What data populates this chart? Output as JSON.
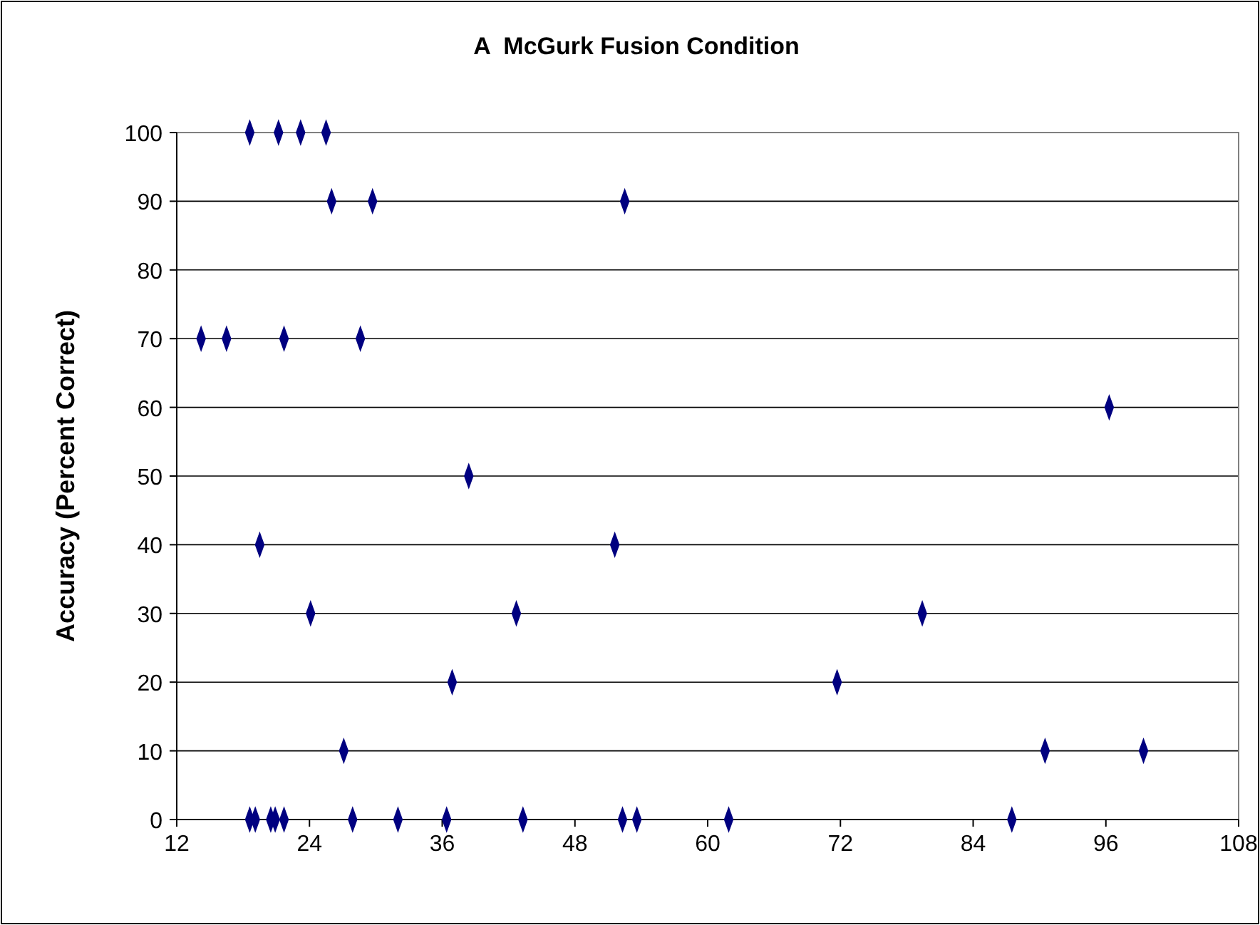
{
  "chart_data": {
    "type": "scatter",
    "title": "A  McGurk Fusion Condition",
    "ylabel": "Accuracy (Percent Correct)",
    "x": [
      18.6,
      21.2,
      23.2,
      25.5,
      26.0,
      29.7,
      52.5,
      14.2,
      16.5,
      21.7,
      28.6,
      96.3,
      38.4,
      19.5,
      51.6,
      24.1,
      42.7,
      79.4,
      36.9,
      71.7,
      27.1,
      90.5,
      99.4,
      18.6,
      19.1,
      20.5,
      20.9,
      21.7,
      27.9,
      32.0,
      36.4,
      43.3,
      52.3,
      53.6,
      61.9,
      87.5
    ],
    "values": [
      100,
      100,
      100,
      100,
      90,
      90,
      90,
      70,
      70,
      70,
      70,
      60,
      50,
      40,
      40,
      30,
      30,
      30,
      20,
      20,
      10,
      10,
      10,
      0,
      0,
      0,
      0,
      0,
      0,
      0,
      0,
      0,
      0,
      0,
      0,
      0
    ],
    "color": "#000080",
    "marker": "diamond",
    "grid": "y",
    "xlim": [
      12,
      108
    ],
    "xticks": [
      12,
      24,
      36,
      48,
      60,
      72,
      84,
      96,
      108
    ],
    "ylim": [
      0,
      100
    ],
    "yticks": [
      0,
      10,
      20,
      30,
      40,
      50,
      60,
      70,
      80,
      90,
      100
    ]
  }
}
